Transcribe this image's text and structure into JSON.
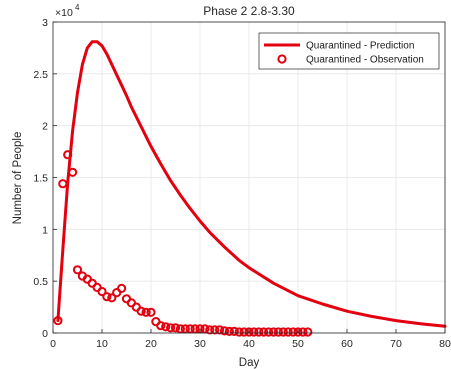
{
  "chart_data": {
    "type": "line",
    "title": "Phase 2 2.8-3.30",
    "xlabel": "Day",
    "ylabel": "Number of People",
    "y_exponent_label": "×10",
    "y_exponent_power": "4",
    "xlim": [
      0,
      80
    ],
    "ylim": [
      0,
      30000
    ],
    "grid": true,
    "legend_position": "top-right",
    "x_ticks": [
      0,
      10,
      20,
      30,
      40,
      50,
      60,
      70,
      80
    ],
    "x_tick_labels": [
      "0",
      "10",
      "20",
      "30",
      "40",
      "50",
      "60",
      "70",
      "80"
    ],
    "y_ticks": [
      0,
      5000,
      10000,
      15000,
      20000,
      25000,
      30000
    ],
    "y_tick_labels": [
      "0",
      "0.5",
      "1",
      "1.5",
      "2",
      "2.5",
      "3"
    ],
    "color": "#e3000f",
    "series": [
      {
        "name": "Quarantined - Prediction",
        "kind": "line",
        "x": [
          1,
          2,
          3,
          4,
          5,
          6,
          7,
          8,
          9,
          10,
          11,
          12,
          13,
          14,
          15,
          16,
          18,
          20,
          22,
          24,
          26,
          28,
          30,
          32,
          35,
          38,
          40,
          45,
          50,
          55,
          60,
          65,
          70,
          75,
          80
        ],
        "y": [
          1200,
          8000,
          14500,
          19500,
          23200,
          25900,
          27500,
          28100,
          28100,
          27700,
          26900,
          25900,
          24900,
          23900,
          22900,
          21800,
          19900,
          18000,
          16300,
          14700,
          13300,
          12000,
          10800,
          9700,
          8300,
          7000,
          6300,
          4800,
          3600,
          2800,
          2100,
          1600,
          1200,
          900,
          650
        ]
      },
      {
        "name": "Quarantined - Observation",
        "kind": "markers",
        "x": [
          1,
          2,
          3,
          4,
          5,
          6,
          7,
          8,
          9,
          10,
          11,
          12,
          13,
          14,
          15,
          16,
          17,
          18,
          19,
          20,
          21,
          22,
          23,
          24,
          25,
          26,
          27,
          28,
          29,
          30,
          31,
          32,
          33,
          34,
          35,
          36,
          37,
          38,
          39,
          40,
          41,
          42,
          43,
          44,
          45,
          46,
          47,
          48,
          49,
          50,
          51,
          52
        ],
        "y": [
          1200,
          14400,
          17200,
          15500,
          6100,
          5500,
          5200,
          4800,
          4400,
          4000,
          3500,
          3400,
          3900,
          4300,
          3300,
          2900,
          2500,
          2100,
          2000,
          2000,
          1100,
          700,
          600,
          500,
          500,
          400,
          400,
          400,
          400,
          400,
          400,
          300,
          300,
          300,
          200,
          150,
          150,
          100,
          100,
          100,
          100,
          100,
          100,
          100,
          100,
          100,
          100,
          100,
          100,
          100,
          100,
          100
        ]
      }
    ]
  }
}
